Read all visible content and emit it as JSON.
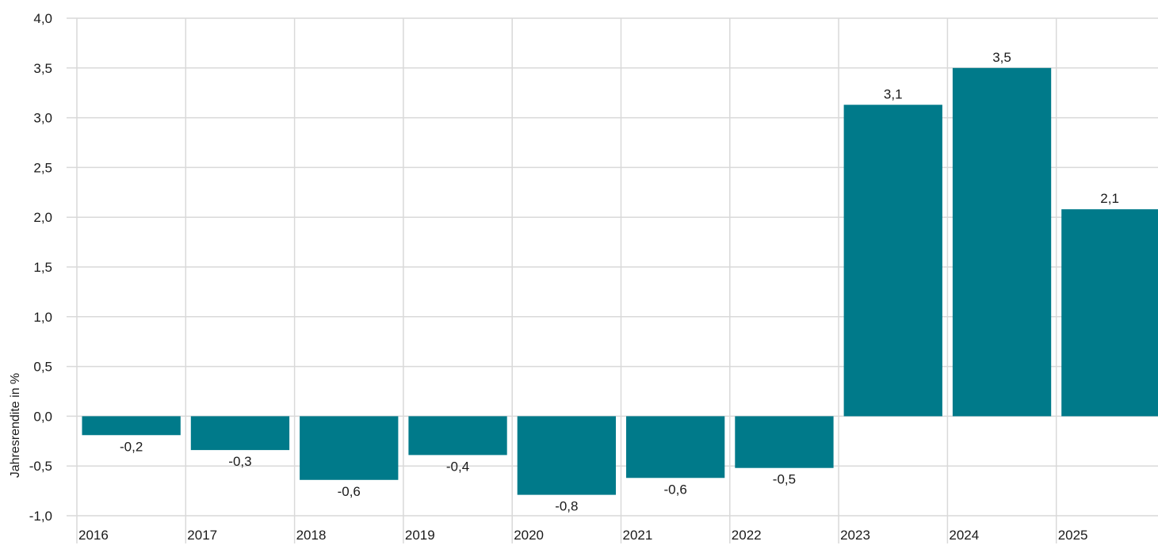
{
  "chart_data": {
    "type": "bar",
    "categories": [
      "2016",
      "2017",
      "2018",
      "2019",
      "2020",
      "2021",
      "2022",
      "2023",
      "2024",
      "2025"
    ],
    "values": [
      -0.19,
      -0.34,
      -0.64,
      -0.39,
      -0.79,
      -0.62,
      -0.52,
      3.13,
      3.5,
      2.08
    ],
    "value_labels": [
      "-0,2",
      "-0,3",
      "-0,6",
      "-0,4",
      "-0,8",
      "-0,6",
      "-0,5",
      "3,1",
      "3,5",
      "2,1"
    ],
    "title": "",
    "xlabel": "",
    "ylabel": "Jahresrendite in %",
    "ylim": [
      -1.0,
      4.0
    ],
    "y_ticks": [
      -1.0,
      -0.5,
      0.0,
      0.5,
      1.0,
      1.5,
      2.0,
      2.5,
      3.0,
      3.5,
      4.0
    ],
    "y_tick_labels": [
      "-1,0",
      "-0,5",
      "0,0",
      "0,5",
      "1,0",
      "1,5",
      "2,0",
      "2,5",
      "3,0",
      "3,5",
      "4,0"
    ],
    "grid": true,
    "bar_color": "#007a8a",
    "grid_color": "#d9d9d9"
  }
}
